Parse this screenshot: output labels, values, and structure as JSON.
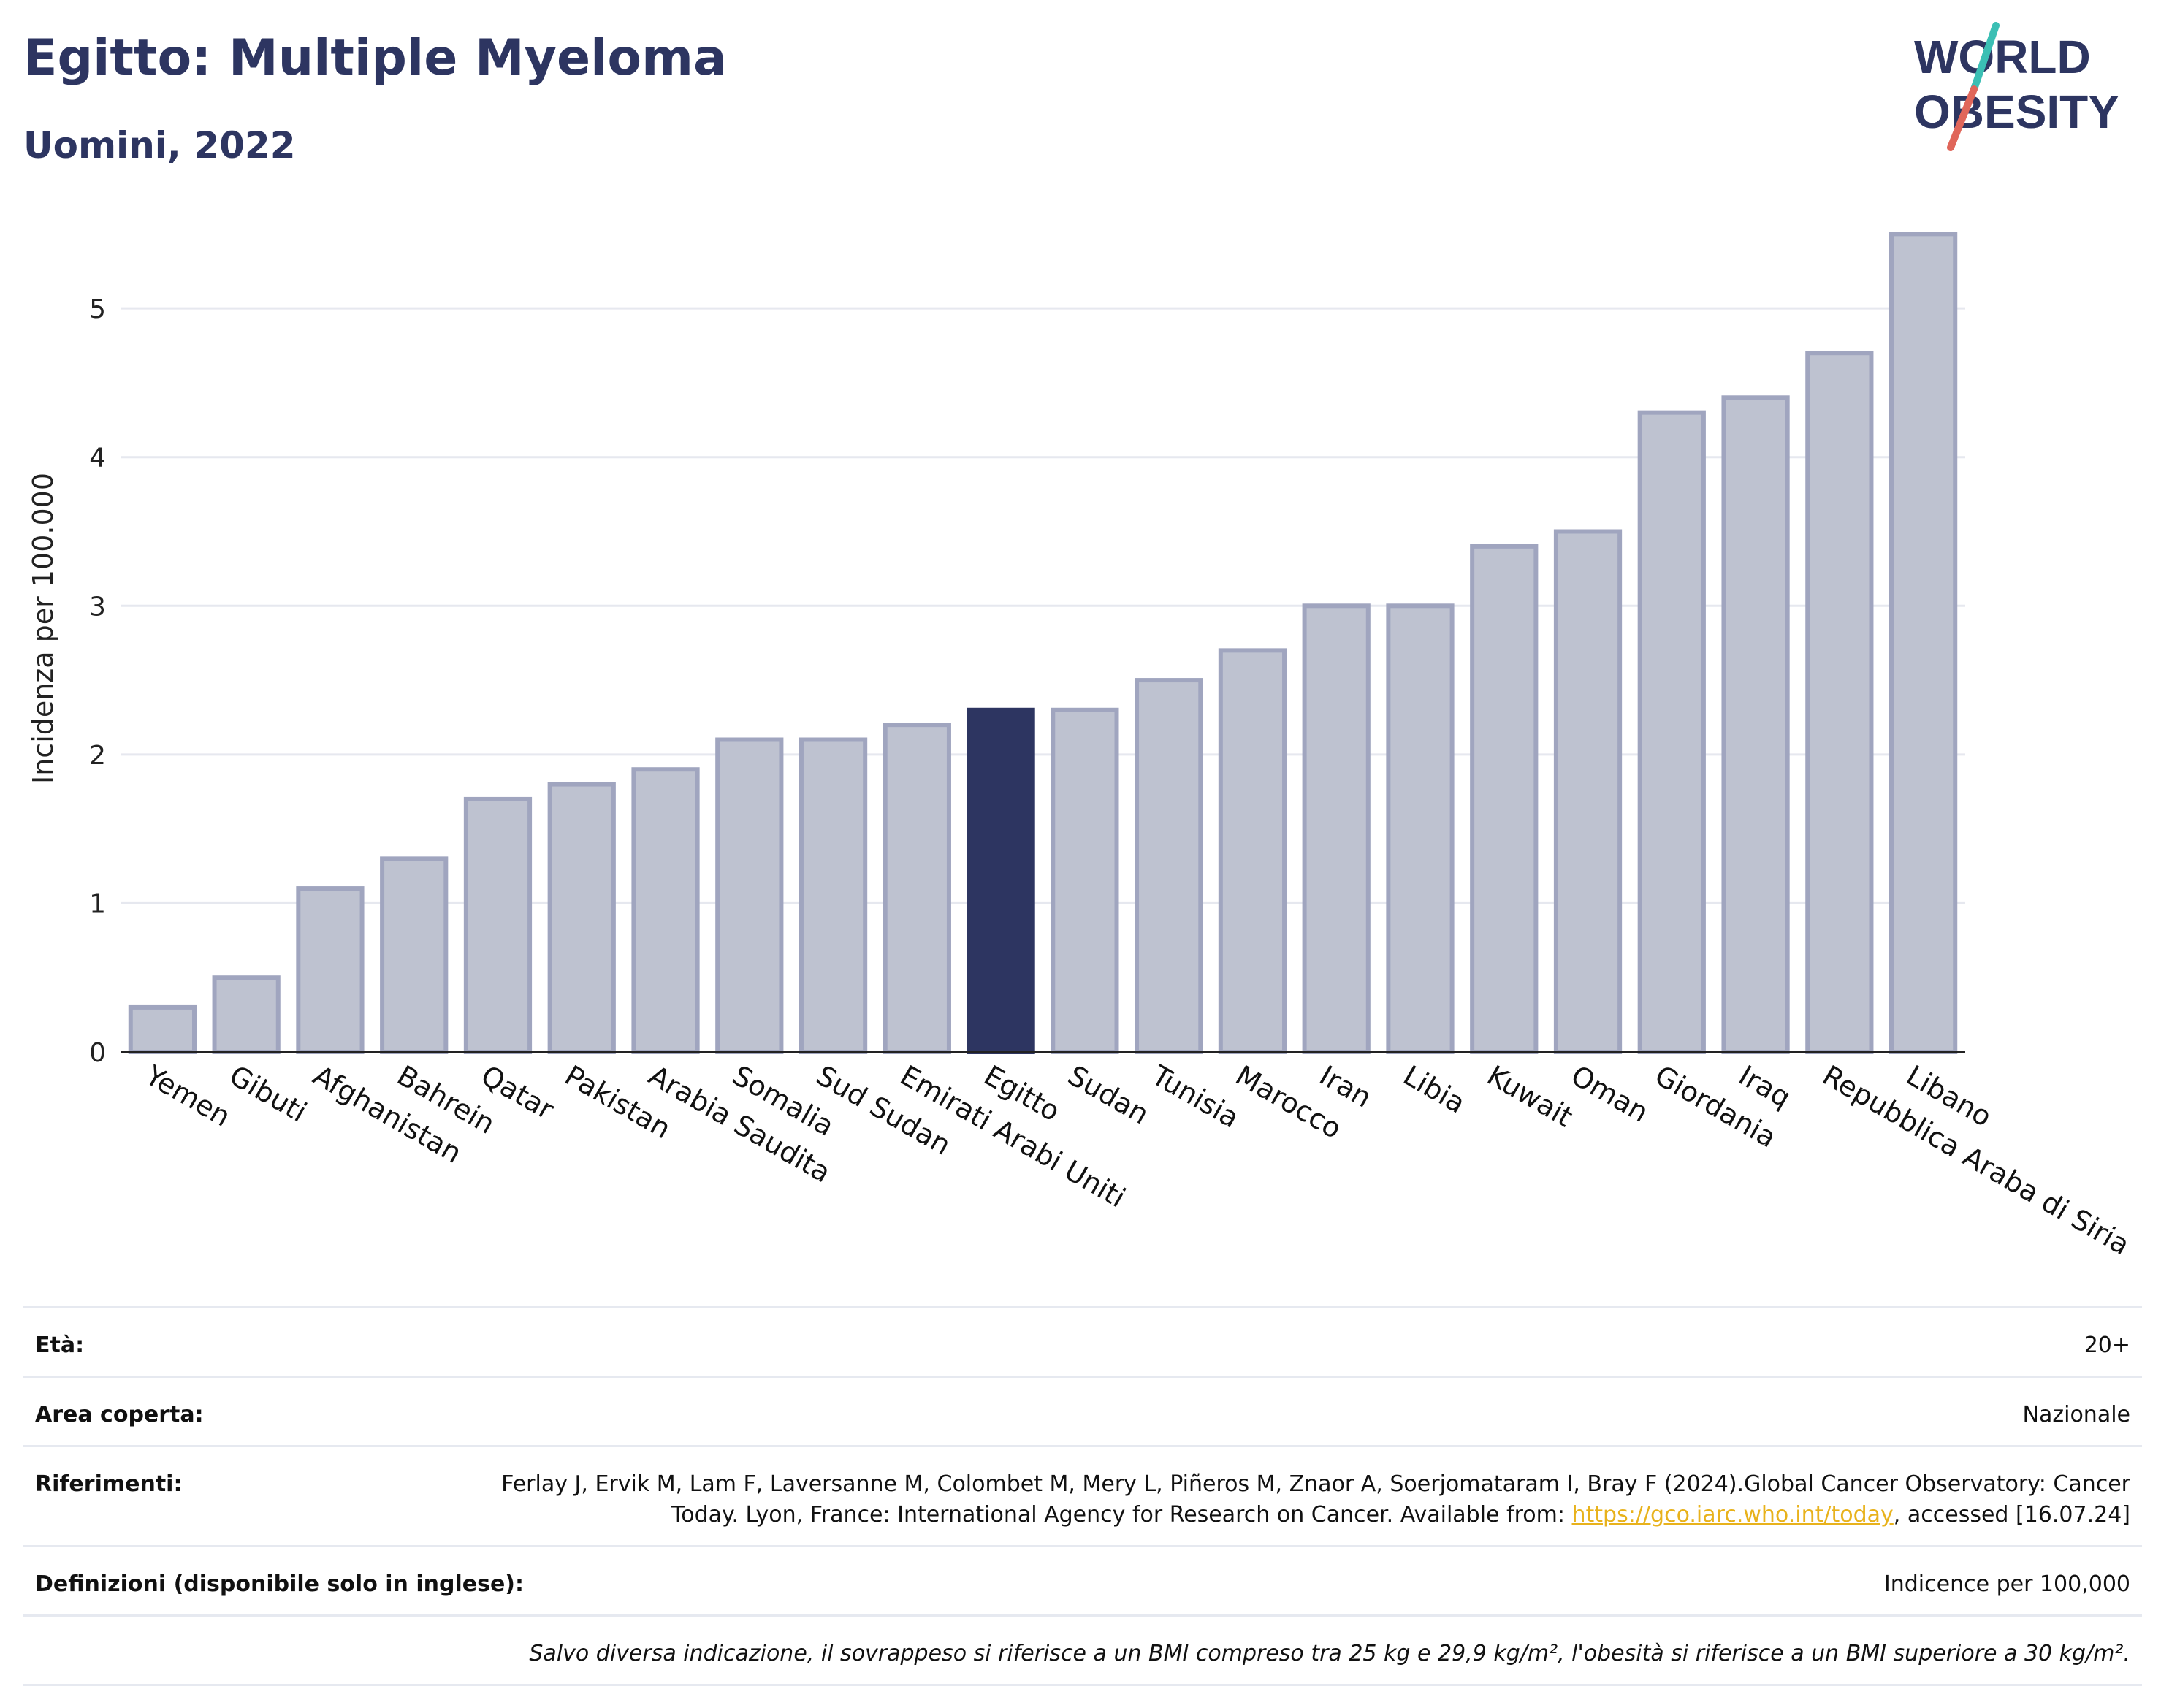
{
  "header": {
    "title": "Egitto: Multiple Myeloma",
    "subtitle": "Uomini, 2022"
  },
  "logo": {
    "line1": "WORLD",
    "line2": "OBESITY",
    "colors": {
      "text": "#2d3561",
      "accent_teal": "#3bbfb4",
      "accent_red": "#e0665a"
    }
  },
  "colors": {
    "bar_default": "#bec2d0",
    "bar_default_stroke": "#a0a5bf",
    "bar_highlight": "#2d3561",
    "grid": "#e6e8ef",
    "axis": "#222222",
    "text": "#2d3561"
  },
  "chart_data": {
    "type": "bar",
    "title": "",
    "xlabel": "",
    "ylabel": "Incidenza per 100.000",
    "ylim": [
      0,
      5.6
    ],
    "yticks": [
      0,
      1,
      2,
      3,
      4,
      5
    ],
    "grid": true,
    "highlight": "Egitto",
    "categories": [
      "Yemen",
      "Gibuti",
      "Afghanistan",
      "Bahrein",
      "Qatar",
      "Pakistan",
      "Arabia Saudita",
      "Somalia",
      "Sud Sudan",
      "Emirati Arabi Uniti",
      "Egitto",
      "Sudan",
      "Tunisia",
      "Marocco",
      "Iran",
      "Libia",
      "Kuwait",
      "Oman",
      "Giordania",
      "Iraq",
      "Repubblica Araba di Siria",
      "Libano"
    ],
    "values": [
      0.3,
      0.5,
      1.1,
      1.3,
      1.7,
      1.8,
      1.9,
      2.1,
      2.1,
      2.2,
      2.3,
      2.3,
      2.5,
      2.7,
      3.0,
      3.0,
      3.4,
      3.5,
      4.3,
      4.4,
      4.7,
      5.5
    ]
  },
  "info": {
    "age": {
      "label": "Età:",
      "value": "20+"
    },
    "area": {
      "label": "Area coperta:",
      "value": "Nazionale"
    },
    "references": {
      "label": "Riferimenti:",
      "text_before": "Ferlay J, Ervik M, Lam F, Laversanne M, Colombet M, Mery L, Piñeros M, Znaor A, Soerjomataram I, Bray F (2024).Global Cancer Observatory: Cancer Today. Lyon, France: International Agency for Research on Cancer. Available from: ",
      "link": "https://gco.iarc.who.int/today",
      "text_after": ", accessed [16.07.24]"
    },
    "definitions": {
      "label": "Definizioni (disponibile solo in inglese):",
      "value": "Indicence per 100,000"
    },
    "note": "Salvo diversa indicazione, il sovrappeso si riferisce a un BMI compreso tra 25 kg e 29,9 kg/m², l'obesità si riferisce a un BMI superiore a 30 kg/m²."
  }
}
